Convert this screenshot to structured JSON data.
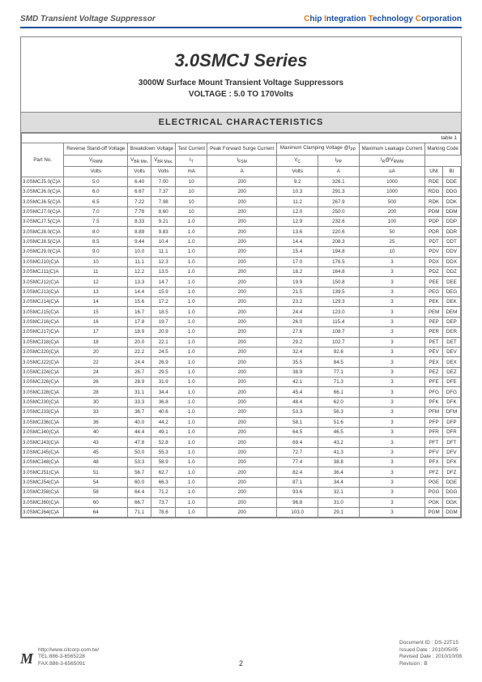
{
  "header": {
    "left": "SMD Transient Voltage Suppressor",
    "right_parts": [
      "C",
      "hip ",
      "I",
      "ntegration ",
      "T",
      "echnology ",
      "C",
      "orporation"
    ]
  },
  "title": "3.0SMCJ Series",
  "subtitle1": "3000W Surface Mount Transient Voltage Suppressors",
  "subtitle2": "VOLTAGE : 5.0 TO 170Volts",
  "char_heading": "ELECTRICAL CHARACTERISTICS",
  "table_label": "table 1",
  "head_row1": [
    "Part No.",
    "Reverse Stand-off Voltage",
    "Breakdown Voltage",
    "Test Current",
    "Peak Forward Surge Current",
    "Maximum Clamping Voltage @I",
    "Maximum Leakage Current",
    "Marking Code"
  ],
  "head_row2": [
    "V",
    "V",
    "V",
    "I",
    "I",
    "V",
    "I",
    "I",
    "",
    ""
  ],
  "head_row2_sub": [
    "RWM",
    "BR Min.",
    "BR Max.",
    "T",
    "FSM",
    "C",
    "PP",
    "R@V",
    "",
    ""
  ],
  "head_row3": [
    "Volts",
    "Volts",
    "Volts",
    "mA",
    "A",
    "Volts",
    "A",
    "uA",
    "UNI",
    "BI"
  ],
  "rows": [
    [
      "3.0SMCJ5.0(C)A",
      "5.0",
      "6.40",
      "7.00",
      "10",
      "200",
      "9.2",
      "326.1",
      "1000",
      "RDE",
      "DDE"
    ],
    [
      "3.0SMCJ6.0(C)A",
      "6.0",
      "6.67",
      "7.37",
      "10",
      "200",
      "10.3",
      "291.3",
      "1000",
      "RDG",
      "DDG"
    ],
    [
      "3.0SMCJ6.5(C)A",
      "6.5",
      "7.22",
      "7.98",
      "10",
      "200",
      "11.2",
      "267.9",
      "500",
      "RDK",
      "DDK"
    ],
    [
      "3.0SMCJ7.0(C)A",
      "7.0",
      "7.78",
      "8.60",
      "10",
      "200",
      "12.0",
      "250.0",
      "200",
      "PDM",
      "DDM"
    ],
    [
      "3.0SMCJ7.5(C)A",
      "7.5",
      "8.33",
      "9.21",
      "1.0",
      "200",
      "12.9",
      "232.6",
      "100",
      "PDP",
      "DDP"
    ],
    [
      "3.0SMCJ8.0(C)A",
      "8.0",
      "8.89",
      "9.83",
      "1.0",
      "200",
      "13.6",
      "220.6",
      "50",
      "PDR",
      "DDR"
    ],
    [
      "3.0SMCJ8.5(C)A",
      "8.5",
      "9.44",
      "10.4",
      "1.0",
      "200",
      "14.4",
      "208.3",
      "25",
      "PDT",
      "DDT"
    ],
    [
      "3.0SMCJ9.0(C)A",
      "9.0",
      "10.0",
      "11.1",
      "1.0",
      "200",
      "15.4",
      "194.8",
      "10",
      "PDV",
      "DDV"
    ],
    [
      "3.0SMCJ10(C)A",
      "10",
      "11.1",
      "12.3",
      "1.0",
      "200",
      "17.0",
      "176.5",
      "3",
      "PDX",
      "DDX"
    ],
    [
      "3.0SMCJ11(C)A",
      "11",
      "12.2",
      "13.5",
      "1.0",
      "200",
      "18.2",
      "164.8",
      "3",
      "PDZ",
      "DDZ"
    ],
    [
      "3.0SMCJ12(C)A",
      "12",
      "13.3",
      "14.7",
      "1.0",
      "200",
      "19.9",
      "150.8",
      "3",
      "PEE",
      "DEE"
    ],
    [
      "3.0SMCJ13(C)A",
      "13",
      "14.4",
      "15.9",
      "1.0",
      "200",
      "21.5",
      "139.5",
      "3",
      "PEG",
      "DEG"
    ],
    [
      "3.0SMCJ14(C)A",
      "14",
      "15.6",
      "17.2",
      "1.0",
      "200",
      "23.2",
      "129.3",
      "3",
      "PEK",
      "DEK"
    ],
    [
      "3.0SMCJ15(C)A",
      "15",
      "16.7",
      "18.5",
      "1.0",
      "200",
      "24.4",
      "123.0",
      "3",
      "PEM",
      "DEM"
    ],
    [
      "3.0SMCJ16(C)A",
      "16",
      "17.8",
      "19.7",
      "1.0",
      "200",
      "26.0",
      "115.4",
      "3",
      "PEP",
      "DEP"
    ],
    [
      "3.0SMCJ17(C)A",
      "17",
      "18.9",
      "20.9",
      "1.0",
      "200",
      "27.6",
      "108.7",
      "3",
      "PER",
      "DER"
    ],
    [
      "3.0SMCJ18(C)A",
      "18",
      "20.0",
      "22.1",
      "1.0",
      "200",
      "29.2",
      "102.7",
      "3",
      "PET",
      "DET"
    ],
    [
      "3.0SMCJ20(C)A",
      "20",
      "22.2",
      "24.5",
      "1.0",
      "200",
      "32.4",
      "92.6",
      "3",
      "PEV",
      "DEV"
    ],
    [
      "3.0SMCJ22(C)A",
      "22",
      "24.4",
      "26.9",
      "1.0",
      "200",
      "35.5",
      "84.5",
      "3",
      "PEX",
      "DEX"
    ],
    [
      "3.0SMCJ24(C)A",
      "24",
      "26.7",
      "29.5",
      "1.0",
      "200",
      "38.9",
      "77.1",
      "3",
      "PEZ",
      "DEZ"
    ],
    [
      "3.0SMCJ26(C)A",
      "26",
      "28.9",
      "31.9",
      "1.0",
      "200",
      "42.1",
      "71.3",
      "3",
      "PFE",
      "DFE"
    ],
    [
      "3.0SMCJ28(C)A",
      "28",
      "31.1",
      "34.4",
      "1.0",
      "200",
      "45.4",
      "66.1",
      "3",
      "PFG",
      "DFG"
    ],
    [
      "3.0SMCJ30(C)A",
      "30",
      "33.3",
      "36.8",
      "1.0",
      "200",
      "48.4",
      "62.0",
      "3",
      "PFK",
      "DFK"
    ],
    [
      "3.0SMCJ33(C)A",
      "33",
      "36.7",
      "40.6",
      "1.0",
      "200",
      "53.3",
      "56.3",
      "3",
      "PFM",
      "DFM"
    ],
    [
      "3.0SMCJ36(C)A",
      "36",
      "40.0",
      "44.2",
      "1.0",
      "200",
      "58.1",
      "51.6",
      "3",
      "PFP",
      "DFP"
    ],
    [
      "3.0SMCJ40(C)A",
      "40",
      "44.4",
      "49.1",
      "1.0",
      "200",
      "64.5",
      "46.5",
      "3",
      "PFR",
      "DFR"
    ],
    [
      "3.0SMCJ43(C)A",
      "43",
      "47.8",
      "52.8",
      "1.0",
      "200",
      "69.4",
      "43.2",
      "3",
      "PFT",
      "DFT"
    ],
    [
      "3.0SMCJ45(C)A",
      "45",
      "50.0",
      "55.3",
      "1.0",
      "200",
      "72.7",
      "41.3",
      "3",
      "PFV",
      "DFV"
    ],
    [
      "3.0SMCJ48(C)A",
      "48",
      "53.3",
      "58.9",
      "1.0",
      "200",
      "77.4",
      "38.8",
      "3",
      "PFX",
      "DFX"
    ],
    [
      "3.0SMCJ51(C)A",
      "51",
      "56.7",
      "62.7",
      "1.0",
      "200",
      "82.4",
      "36.4",
      "3",
      "PFZ",
      "DFZ"
    ],
    [
      "3.0SMCJ54(C)A",
      "54",
      "60.0",
      "66.3",
      "1.0",
      "200",
      "87.1",
      "34.4",
      "3",
      "PGE",
      "DGE"
    ],
    [
      "3.0SMCJ58(C)A",
      "58",
      "64.4",
      "71.2",
      "1.0",
      "200",
      "93.6",
      "32.1",
      "3",
      "PGG",
      "DGG"
    ],
    [
      "3.0SMCJ60(C)A",
      "60",
      "66.7",
      "73.7",
      "1.0",
      "200",
      "96.8",
      "31.0",
      "3",
      "PGK",
      "DGK"
    ],
    [
      "3.0SMCJ64(C)A",
      "64",
      "71.1",
      "78.6",
      "1.0",
      "200",
      "103.0",
      "29.1",
      "3",
      "PGM",
      "DGM"
    ]
  ],
  "footer": {
    "url": "http://www.citcorp.com.tw/",
    "tel": "TEL:886-3-6565228",
    "fax": "FAX:886-3-6565091",
    "page": "2",
    "doc": "Document ID : DS-22T15",
    "issued": "Issued Date : 2010/05/05",
    "revised": "Revised Date : 2010/10/08",
    "revision": "Revision : B"
  }
}
